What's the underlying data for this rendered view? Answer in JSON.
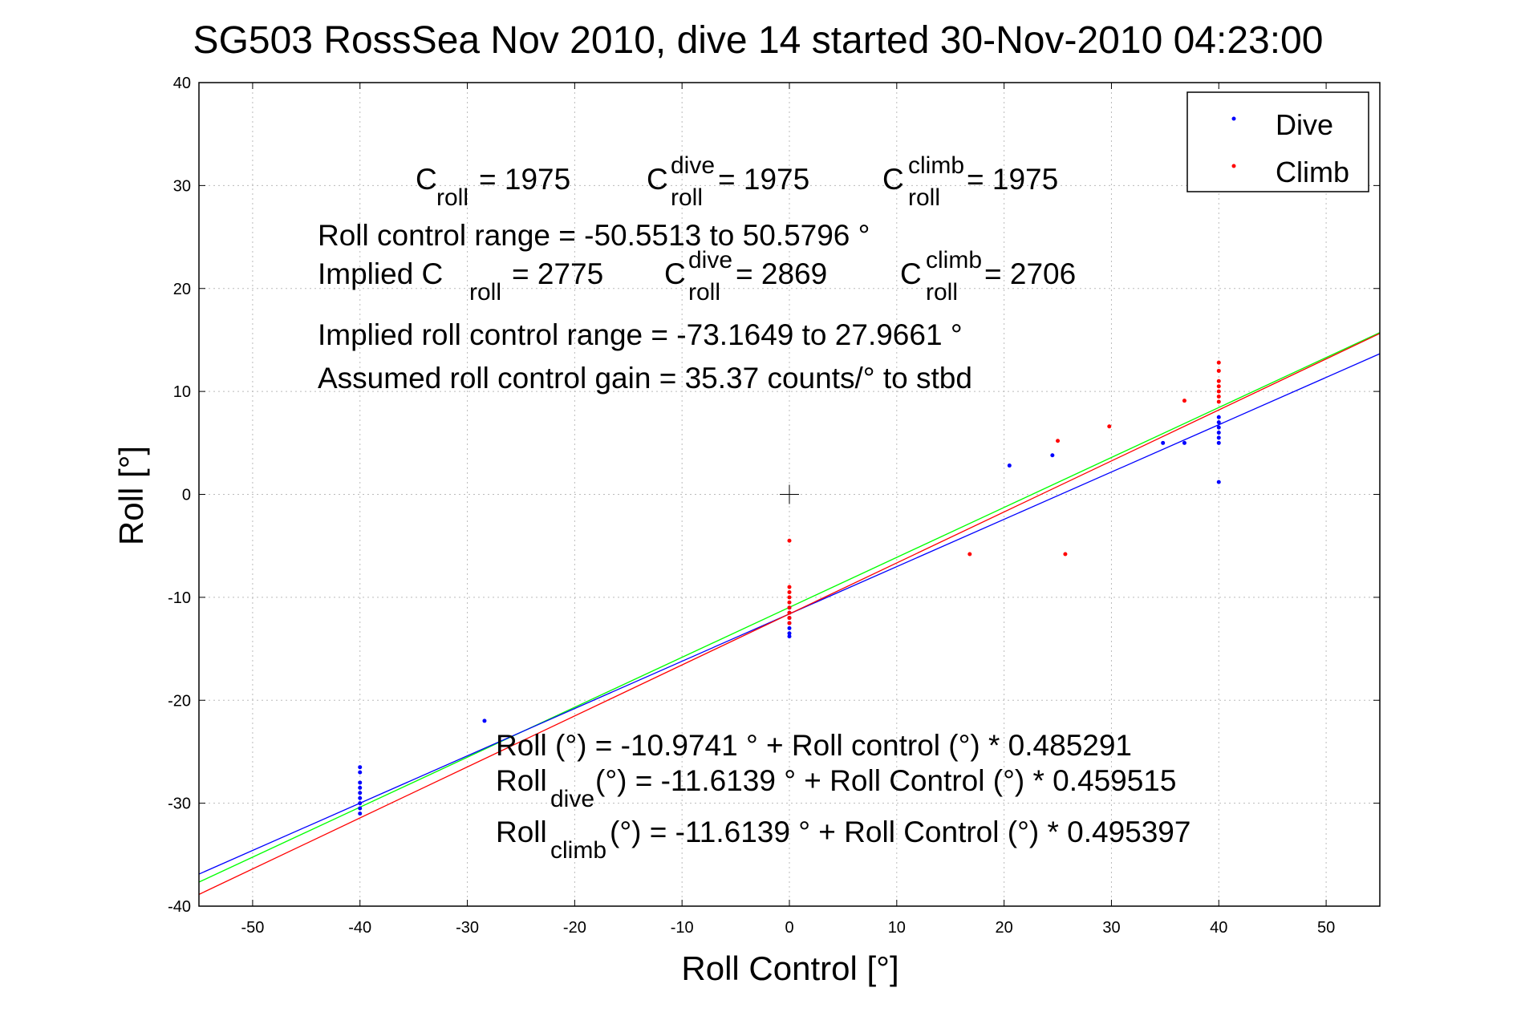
{
  "chart_data": {
    "type": "scatter",
    "title": "SG503 RossSea Nov 2010, dive 14 started 30-Nov-2010 04:23:00",
    "xlabel": "Roll Control [°]",
    "ylabel": "Roll [°]",
    "xlim": [
      -55,
      55
    ],
    "ylim": [
      -40,
      40
    ],
    "xticks": [
      -50,
      -40,
      -30,
      -20,
      -10,
      0,
      10,
      20,
      30,
      40,
      50
    ],
    "yticks": [
      -40,
      -30,
      -20,
      -10,
      0,
      10,
      20,
      30,
      40
    ],
    "grid": true,
    "legend_position": "top-right",
    "colors": {
      "dive": "#0000ff",
      "climb": "#ff0000",
      "fit_all": "#00ff00"
    },
    "series": [
      {
        "name": "Dive",
        "color": "#0000ff",
        "points": [
          [
            -40,
            -26.5
          ],
          [
            -40,
            -27.0
          ],
          [
            -40,
            -28.0
          ],
          [
            -40,
            -28.5
          ],
          [
            -40,
            -29.0
          ],
          [
            -40,
            -29.5
          ],
          [
            -40,
            -30.0
          ],
          [
            -40,
            -30.5
          ],
          [
            -40,
            -31.0
          ],
          [
            -28.4,
            -22.0
          ],
          [
            0,
            -11.0
          ],
          [
            0,
            -11.5
          ],
          [
            0,
            -12.0
          ],
          [
            0,
            -12.5
          ],
          [
            0,
            -13.0
          ],
          [
            0,
            -13.5
          ],
          [
            0,
            -13.8
          ],
          [
            20.5,
            2.8
          ],
          [
            24.5,
            3.8
          ],
          [
            34.8,
            5.0
          ],
          [
            36.8,
            5.0
          ],
          [
            40,
            7.5
          ],
          [
            40,
            7.0
          ],
          [
            40,
            6.5
          ],
          [
            40,
            6.0
          ],
          [
            40,
            5.5
          ],
          [
            40,
            5.0
          ],
          [
            40,
            1.2
          ]
        ]
      },
      {
        "name": "Climb",
        "color": "#ff0000",
        "points": [
          [
            0,
            -4.5
          ],
          [
            0,
            -9.0
          ],
          [
            0,
            -9.5
          ],
          [
            0,
            -10.0
          ],
          [
            0,
            -10.5
          ],
          [
            0,
            -11.0
          ],
          [
            0,
            -11.5
          ],
          [
            0,
            -12.0
          ],
          [
            0,
            -12.5
          ],
          [
            16.8,
            -5.8
          ],
          [
            25.0,
            5.2
          ],
          [
            25.7,
            -5.8
          ],
          [
            29.8,
            6.6
          ],
          [
            36.8,
            9.1
          ],
          [
            40,
            9.0
          ],
          [
            40,
            9.5
          ],
          [
            40,
            10.0
          ],
          [
            40,
            10.5
          ],
          [
            40,
            11.0
          ],
          [
            40,
            12.0
          ],
          [
            40,
            12.8
          ]
        ]
      }
    ],
    "fit_lines": [
      {
        "color": "#00ff00",
        "intercept": -10.9741,
        "slope": 0.485291
      },
      {
        "color": "#0000ff",
        "intercept": -11.6139,
        "slope": 0.459515
      },
      {
        "color": "#ff0000",
        "intercept": -11.6139,
        "slope": 0.495397
      }
    ],
    "annotations": {
      "line1": {
        "c_roll": "C",
        "roll_sub": "roll",
        "c_roll_val": " = 1975",
        "c_dive": "C",
        "dive_sup": "dive",
        "c_dive_val": " = 1975",
        "c_climb": "C",
        "climb_sup": "climb",
        "c_climb_val": " = 1975"
      },
      "range": "Roll control range = -50.5513 to 50.5796 °",
      "implied": {
        "prefix": "Implied C",
        "roll_sub": "roll",
        "c_roll_val": " = 2775",
        "c_dive": "C",
        "dive_sup": "dive",
        "c_dive_val": " = 2869",
        "c_climb": "C",
        "climb_sup": "climb",
        "c_climb_val": " = 2706"
      },
      "implied_range": "Implied roll control range = -73.1649 to 27.9661 °",
      "gain": "Assumed roll control gain = 35.37 counts/° to stbd",
      "fit_all": "Roll (°) = -10.9741 ° + Roll control (°) * 0.485291",
      "fit_dive": {
        "prefix": "Roll",
        "sub": "dive",
        "rest": " (°) = -11.6139 ° + Roll Control (°) * 0.459515"
      },
      "fit_climb": {
        "prefix": "Roll",
        "sub": "climb",
        "rest": " (°) = -11.6139 ° + Roll Control (°) * 0.495397"
      }
    }
  }
}
